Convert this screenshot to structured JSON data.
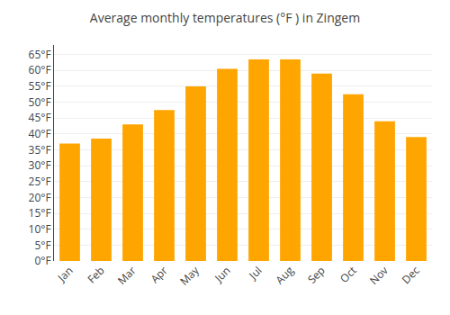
{
  "chart_data": {
    "type": "bar",
    "title": "Average monthly temperatures (°F ) in Zingem",
    "categories": [
      "Jan",
      "Feb",
      "Mar",
      "Apr",
      "May",
      "Jun",
      "Jul",
      "Aug",
      "Sep",
      "Oct",
      "Nov",
      "Dec"
    ],
    "values": [
      37,
      38.5,
      43,
      47.5,
      55,
      60.5,
      63.5,
      63.5,
      59,
      52.5,
      44,
      39
    ],
    "color": "#FFA500",
    "ylim": [
      0,
      68
    ],
    "yticks": [
      {
        "value": 0,
        "label": "0°F"
      },
      {
        "value": 5,
        "label": "5°F"
      },
      {
        "value": 10,
        "label": "10°F"
      },
      {
        "value": 15,
        "label": "15°F"
      },
      {
        "value": 20,
        "label": "20°F"
      },
      {
        "value": 25,
        "label": "25°F"
      },
      {
        "value": 30,
        "label": "30°F"
      },
      {
        "value": 35,
        "label": "35°F"
      },
      {
        "value": 40,
        "label": "40°F"
      },
      {
        "value": 45,
        "label": "45°F"
      },
      {
        "value": 50,
        "label": "50°F"
      },
      {
        "value": 55,
        "label": "55°F"
      },
      {
        "value": 60,
        "label": "60°F"
      },
      {
        "value": 65,
        "label": "65°F"
      }
    ],
    "grid": true
  }
}
